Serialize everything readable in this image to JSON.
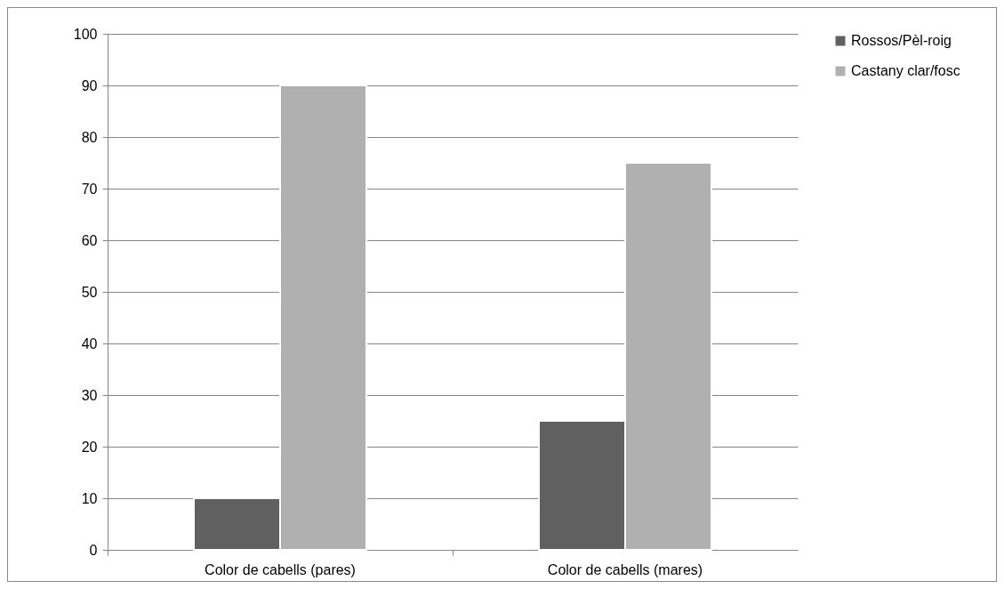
{
  "chart_data": {
    "type": "bar",
    "categories": [
      "Color de cabells (pares)",
      "Color de cabells (mares)"
    ],
    "series": [
      {
        "name": "Rossos/Pèl-roig",
        "color": "#606060",
        "values": [
          10,
          25
        ]
      },
      {
        "name": "Castany clar/fosc",
        "color": "#b0b0b0",
        "values": [
          90,
          75
        ]
      }
    ],
    "ylim": [
      0,
      100
    ],
    "yticks": [
      0,
      10,
      20,
      30,
      40,
      50,
      60,
      70,
      80,
      90,
      100
    ],
    "grid": "y",
    "legend": "right"
  }
}
